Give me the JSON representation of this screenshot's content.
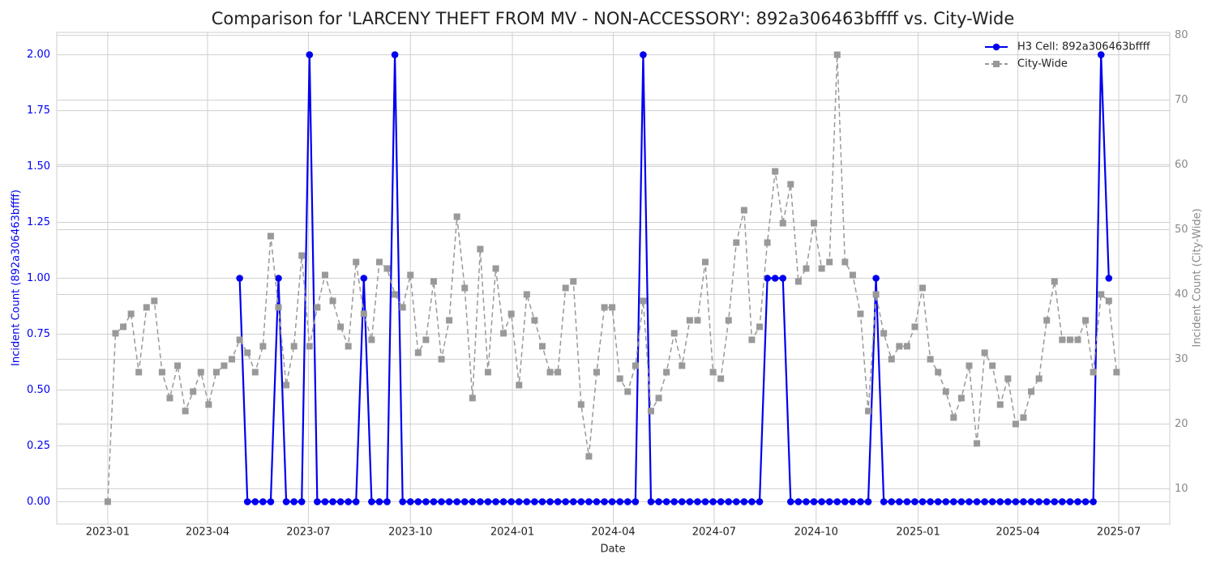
{
  "chart_data": {
    "type": "line",
    "title": "Comparison for 'LARCENY THEFT FROM MV - NON-ACCESSORY': 892a306463bffff vs. City-Wide",
    "xlabel": "Date",
    "ylabel": "Incident Count (892a306463bffff)",
    "y2label": "Incident Count (City-Wide)",
    "x": [
      "2023-01-01",
      "2023-01-08",
      "2023-01-15",
      "2023-01-22",
      "2023-01-29",
      "2023-02-05",
      "2023-02-12",
      "2023-02-19",
      "2023-02-26",
      "2023-03-05",
      "2023-03-12",
      "2023-03-19",
      "2023-03-26",
      "2023-04-02",
      "2023-04-09",
      "2023-04-16",
      "2023-04-23",
      "2023-04-30",
      "2023-05-07",
      "2023-05-14",
      "2023-05-21",
      "2023-05-28",
      "2023-06-04",
      "2023-06-11",
      "2023-06-18",
      "2023-06-25",
      "2023-07-02",
      "2023-07-09",
      "2023-07-16",
      "2023-07-23",
      "2023-07-30",
      "2023-08-06",
      "2023-08-13",
      "2023-08-20",
      "2023-08-27",
      "2023-09-03",
      "2023-09-10",
      "2023-09-17",
      "2023-09-24",
      "2023-10-01",
      "2023-10-08",
      "2023-10-15",
      "2023-10-22",
      "2023-10-29",
      "2023-11-05",
      "2023-11-12",
      "2023-11-19",
      "2023-11-26",
      "2023-12-03",
      "2023-12-10",
      "2023-12-17",
      "2023-12-24",
      "2023-12-31",
      "2024-01-07",
      "2024-01-14",
      "2024-01-21",
      "2024-01-28",
      "2024-02-04",
      "2024-02-11",
      "2024-02-18",
      "2024-02-25",
      "2024-03-03",
      "2024-03-10",
      "2024-03-17",
      "2024-03-24",
      "2024-03-31",
      "2024-04-07",
      "2024-04-14",
      "2024-04-21",
      "2024-04-28",
      "2024-05-05",
      "2024-05-12",
      "2024-05-19",
      "2024-05-26",
      "2024-06-02",
      "2024-06-09",
      "2024-06-16",
      "2024-06-23",
      "2024-06-30",
      "2024-07-07",
      "2024-07-14",
      "2024-07-21",
      "2024-07-28",
      "2024-08-04",
      "2024-08-11",
      "2024-08-18",
      "2024-08-25",
      "2024-09-01",
      "2024-09-08",
      "2024-09-15",
      "2024-09-22",
      "2024-09-29",
      "2024-10-06",
      "2024-10-13",
      "2024-10-20",
      "2024-10-27",
      "2024-11-03",
      "2024-11-10",
      "2024-11-17",
      "2024-11-24",
      "2024-12-01",
      "2024-12-08",
      "2024-12-15",
      "2024-12-22",
      "2024-12-29",
      "2025-01-05",
      "2025-01-12",
      "2025-01-19",
      "2025-01-26",
      "2025-02-02",
      "2025-02-09",
      "2025-02-16",
      "2025-02-23",
      "2025-03-02",
      "2025-03-09",
      "2025-03-16",
      "2025-03-23",
      "2025-03-30",
      "2025-04-06",
      "2025-04-13",
      "2025-04-20",
      "2025-04-27",
      "2025-05-04",
      "2025-05-11",
      "2025-05-18",
      "2025-05-25",
      "2025-06-01",
      "2025-06-08",
      "2025-06-15",
      "2025-06-22",
      "2025-06-29"
    ],
    "series": [
      {
        "name": "H3 Cell: 892a306463bffff",
        "color": "#0000ee",
        "style": "solid",
        "marker": "circle",
        "axis": "y",
        "values": [
          null,
          null,
          null,
          null,
          null,
          null,
          null,
          null,
          null,
          null,
          null,
          null,
          null,
          null,
          null,
          null,
          null,
          1,
          0,
          0,
          0,
          0,
          1,
          0,
          0,
          0,
          2,
          0,
          0,
          0,
          0,
          0,
          0,
          1,
          0,
          0,
          0,
          2,
          0,
          0,
          0,
          0,
          0,
          0,
          0,
          0,
          0,
          0,
          0,
          0,
          0,
          0,
          0,
          0,
          0,
          0,
          0,
          0,
          0,
          0,
          0,
          0,
          0,
          0,
          0,
          0,
          0,
          0,
          0,
          2,
          0,
          0,
          0,
          0,
          0,
          0,
          0,
          0,
          0,
          0,
          0,
          0,
          0,
          0,
          0,
          1,
          1,
          1,
          0,
          0,
          0,
          0,
          0,
          0,
          0,
          0,
          0,
          0,
          0,
          1,
          0,
          0,
          0,
          0,
          0,
          0,
          0,
          0,
          0,
          0,
          0,
          0,
          0,
          0,
          0,
          0,
          0,
          0,
          0,
          0,
          0,
          0,
          0,
          0,
          0,
          0,
          0,
          0,
          2,
          1,
          null
        ]
      },
      {
        "name": "City-Wide",
        "color": "#999999",
        "style": "dashed",
        "marker": "square",
        "axis": "y2",
        "values": [
          8,
          34,
          35,
          37,
          28,
          38,
          39,
          28,
          24,
          29,
          22,
          25,
          28,
          23,
          28,
          29,
          30,
          33,
          31,
          28,
          32,
          49,
          38,
          26,
          32,
          46,
          32,
          38,
          43,
          39,
          35,
          32,
          45,
          37,
          33,
          45,
          44,
          40,
          38,
          43,
          31,
          33,
          42,
          30,
          36,
          52,
          41,
          24,
          47,
          28,
          44,
          34,
          37,
          26,
          40,
          36,
          32,
          28,
          28,
          41,
          42,
          23,
          15,
          28,
          38,
          38,
          27,
          25,
          29,
          39,
          22,
          24,
          28,
          34,
          29,
          36,
          36,
          45,
          28,
          27,
          36,
          48,
          53,
          33,
          35,
          48,
          59,
          51,
          57,
          42,
          44,
          51,
          44,
          45,
          77,
          45,
          43,
          37,
          22,
          40,
          34,
          30,
          32,
          32,
          35,
          41,
          30,
          28,
          25,
          21,
          24,
          29,
          17,
          31,
          29,
          23,
          27,
          20,
          21,
          25,
          27,
          36,
          42,
          33,
          33,
          33,
          36,
          28,
          40,
          39,
          28
        ]
      }
    ],
    "xlim": [
      "2022-11-16",
      "2025-08-16"
    ],
    "xticks": [
      "2023-01",
      "2023-04",
      "2023-07",
      "2023-10",
      "2024-01",
      "2024-04",
      "2024-07",
      "2024-10",
      "2025-01",
      "2025-04",
      "2025-07"
    ],
    "ylim": [
      -0.1,
      2.1
    ],
    "yticks": [
      {
        "value": 0,
        "label": "0.00"
      },
      {
        "value": 0.25,
        "label": "0.25"
      },
      {
        "value": 0.5,
        "label": "0.50"
      },
      {
        "value": 0.75,
        "label": "0.75"
      },
      {
        "value": 1,
        "label": "1.00"
      },
      {
        "value": 1.25,
        "label": "1.25"
      },
      {
        "value": 1.5,
        "label": "1.50"
      },
      {
        "value": 1.75,
        "label": "1.75"
      },
      {
        "value": 2,
        "label": "2.00"
      }
    ],
    "y2lim": [
      4.55,
      80.45
    ],
    "y2ticks": [
      10,
      20,
      30,
      40,
      50,
      60,
      70,
      80
    ],
    "grid": true,
    "legend": "upper right"
  }
}
